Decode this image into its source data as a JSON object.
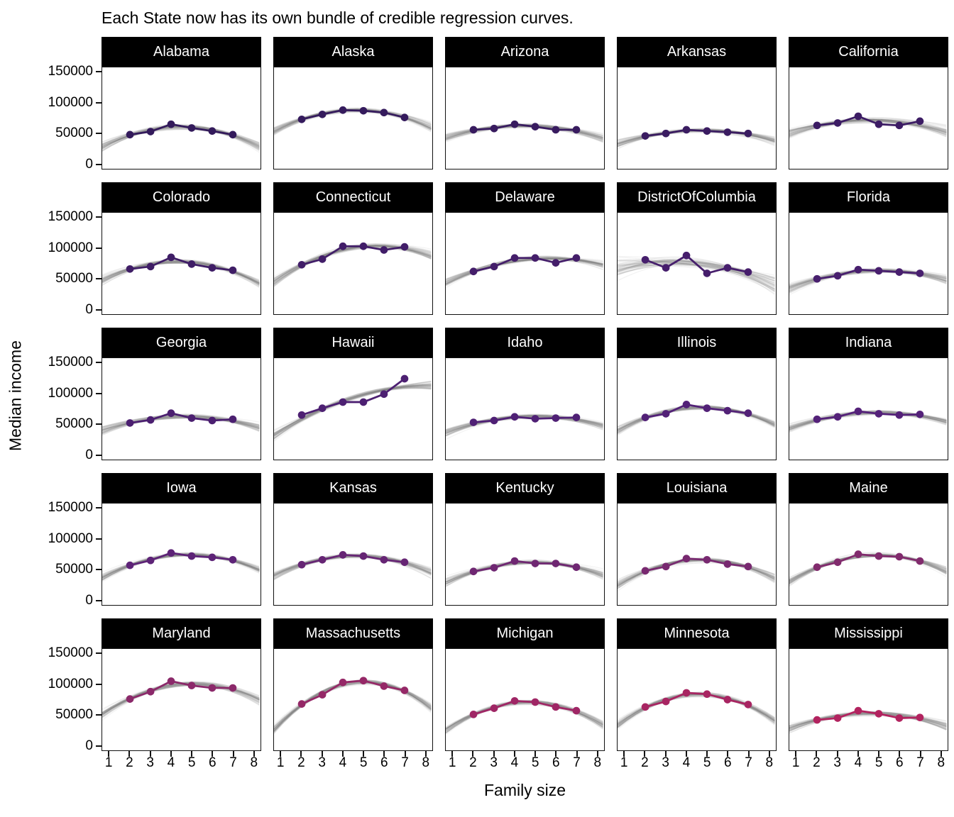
{
  "title": "Each State now has its own bundle of credible regression curves.",
  "axes": {
    "x_label": "Family size",
    "y_label": "Median income",
    "x_ticks": [
      1,
      2,
      3,
      4,
      5,
      6,
      7,
      8
    ],
    "y_ticks": [
      150000,
      100000,
      50000,
      0
    ]
  },
  "chart_data": {
    "type": "line",
    "title": "Each State now has its own bundle of credible regression curves.",
    "xlabel": "Family size",
    "ylabel": "Median income",
    "x": [
      2,
      3,
      4,
      5,
      6,
      7
    ],
    "xlim": [
      1,
      8
    ],
    "ylim": [
      0,
      157500
    ],
    "grid": false,
    "legend": "none",
    "layout": {
      "rows": 5,
      "cols": 5,
      "facet_strip_bg": "#000000",
      "facet_strip_text": "#ffffff"
    },
    "bundle": {
      "description": "translucent gray credible regression curves behind each data line",
      "color": "#787878",
      "opacity": 0.09,
      "curves_per_panel": 55
    },
    "facets": [
      {
        "state": "Alabama",
        "color": "#331A5B",
        "values": [
          48000,
          53000,
          65000,
          59000,
          54000,
          48000
        ]
      },
      {
        "state": "Alaska",
        "color": "#351B5D",
        "values": [
          73000,
          81000,
          88000,
          87000,
          84000,
          76000
        ]
      },
      {
        "state": "Arizona",
        "color": "#381B5F",
        "values": [
          56000,
          58000,
          65000,
          61000,
          56000,
          56000
        ]
      },
      {
        "state": "Arkansas",
        "color": "#3A1C61",
        "values": [
          46000,
          50000,
          56000,
          54000,
          52000,
          50000
        ]
      },
      {
        "state": "California",
        "color": "#3C1C64",
        "values": [
          63000,
          67000,
          78000,
          65000,
          63000,
          70000
        ]
      },
      {
        "state": "Colorado",
        "color": "#3F1D66",
        "values": [
          66000,
          70000,
          85000,
          74000,
          68000,
          64000
        ]
      },
      {
        "state": "Connecticut",
        "color": "#411D68",
        "values": [
          73000,
          82000,
          103000,
          103000,
          97000,
          102000
        ]
      },
      {
        "state": "Delaware",
        "color": "#441E6A",
        "values": [
          62000,
          70000,
          84000,
          84000,
          76000,
          84000
        ]
      },
      {
        "state": "DistrictOfColumbia",
        "color": "#461E6C",
        "values": [
          81000,
          68000,
          88000,
          59000,
          68000,
          61000
        ]
      },
      {
        "state": "Florida",
        "color": "#481F6E",
        "values": [
          50000,
          55000,
          65000,
          63000,
          61000,
          59000
        ]
      },
      {
        "state": "Georgia",
        "color": "#4B1F70",
        "values": [
          52000,
          57000,
          68000,
          60000,
          56000,
          58000
        ]
      },
      {
        "state": "Hawaii",
        "color": "#4D2072",
        "values": [
          65000,
          76000,
          86000,
          86000,
          99000,
          124000
        ]
      },
      {
        "state": "Idaho",
        "color": "#4F2075",
        "values": [
          53000,
          56000,
          62000,
          59000,
          60000,
          61000
        ]
      },
      {
        "state": "Illinois",
        "color": "#522177",
        "values": [
          61000,
          67000,
          82000,
          76000,
          72000,
          68000
        ]
      },
      {
        "state": "Indiana",
        "color": "#542179",
        "values": [
          58000,
          62000,
          71000,
          67000,
          65000,
          66000
        ]
      },
      {
        "state": "Iowa",
        "color": "#5D2377",
        "values": [
          57000,
          65000,
          77000,
          72000,
          70000,
          66000
        ]
      },
      {
        "state": "Kansas",
        "color": "#662574",
        "values": [
          58000,
          66000,
          74000,
          72000,
          66000,
          62000
        ]
      },
      {
        "state": "Kentucky",
        "color": "#6F2772",
        "values": [
          47000,
          53000,
          64000,
          60000,
          60000,
          54000
        ]
      },
      {
        "state": "Louisiana",
        "color": "#782970",
        "values": [
          48000,
          55000,
          68000,
          66000,
          59000,
          55000
        ]
      },
      {
        "state": "Maine",
        "color": "#812B6D",
        "values": [
          54000,
          62000,
          75000,
          72000,
          71000,
          64000
        ]
      },
      {
        "state": "Maryland",
        "color": "#8B296A",
        "values": [
          76000,
          88000,
          105000,
          98000,
          94000,
          94000
        ]
      },
      {
        "state": "Massachusetts",
        "color": "#952867",
        "values": [
          68000,
          83000,
          103000,
          106000,
          97000,
          90000
        ]
      },
      {
        "state": "Michigan",
        "color": "#9F2665",
        "values": [
          51000,
          61000,
          73000,
          71000,
          63000,
          57000
        ]
      },
      {
        "state": "Minnesota",
        "color": "#A82562",
        "values": [
          63000,
          72000,
          86000,
          84000,
          75000,
          67000
        ]
      },
      {
        "state": "Mississippi",
        "color": "#B2235F",
        "values": [
          42000,
          45000,
          57000,
          52000,
          45000,
          46000
        ]
      }
    ]
  }
}
